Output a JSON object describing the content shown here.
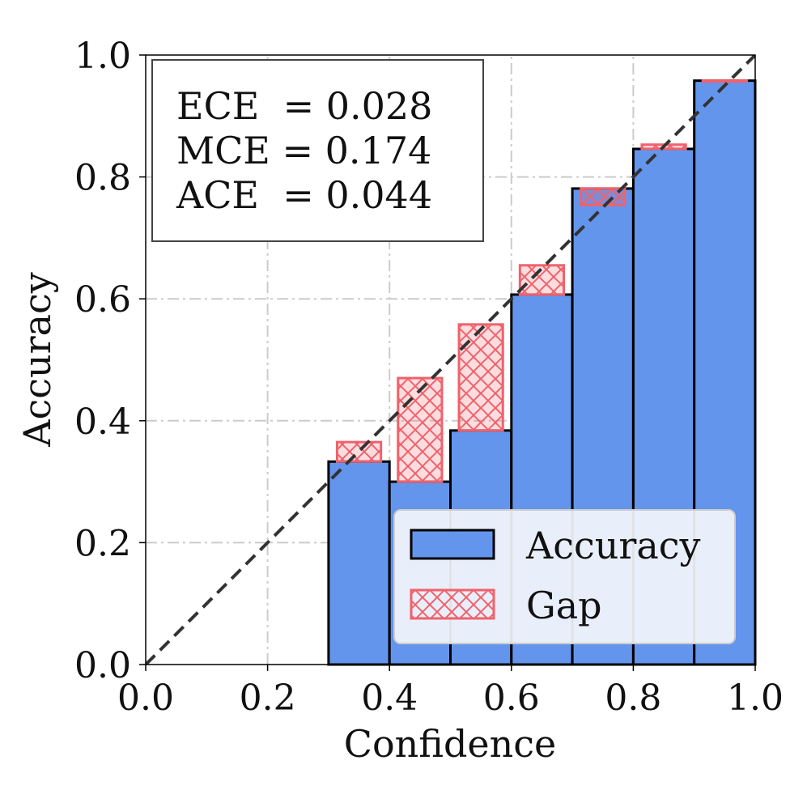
{
  "chart_data": {
    "type": "bar",
    "title": "",
    "xlabel": "Confidence",
    "ylabel": "Accuracy",
    "xlim": [
      0.0,
      1.0
    ],
    "ylim": [
      0.0,
      1.0
    ],
    "grid": true,
    "x_tick_labels": [
      "0.0",
      "0.2",
      "0.4",
      "0.6",
      "0.8",
      "1.0"
    ],
    "y_tick_labels": [
      "0.0",
      "0.2",
      "0.4",
      "0.6",
      "0.8",
      "1.0"
    ],
    "bins": [
      {
        "start": 0.3,
        "end": 0.4,
        "accuracy": 0.333,
        "confidence": 0.365
      },
      {
        "start": 0.4,
        "end": 0.5,
        "accuracy": 0.3,
        "confidence": 0.47
      },
      {
        "start": 0.5,
        "end": 0.6,
        "accuracy": 0.384,
        "confidence": 0.558
      },
      {
        "start": 0.6,
        "end": 0.7,
        "accuracy": 0.607,
        "confidence": 0.655
      },
      {
        "start": 0.7,
        "end": 0.8,
        "accuracy": 0.781,
        "confidence": 0.754
      },
      {
        "start": 0.8,
        "end": 0.9,
        "accuracy": 0.846,
        "confidence": 0.853
      },
      {
        "start": 0.9,
        "end": 1.0,
        "accuracy": 0.958,
        "confidence": 0.958
      }
    ],
    "series": [
      {
        "name": "Accuracy",
        "color": "#6495ED",
        "edge_color": "#000000"
      },
      {
        "name": "Gap",
        "color": "#F0626C",
        "hatch": "cross"
      }
    ],
    "reference_line": {
      "style": "dashed",
      "color": "#333333",
      "from": [
        0,
        0
      ],
      "to": [
        1,
        1
      ]
    },
    "metrics": [
      {
        "label": "ECE ",
        "eq": " = ",
        "value": "0.028"
      },
      {
        "label": "MCE",
        "eq": " = ",
        "value": "0.174"
      },
      {
        "label": "ACE ",
        "eq": " = ",
        "value": "0.044"
      }
    ],
    "legend": {
      "position": "bottom-right",
      "entries": [
        {
          "label": "Accuracy",
          "kind": "bar"
        },
        {
          "label": "Gap",
          "kind": "hatch"
        }
      ]
    }
  }
}
